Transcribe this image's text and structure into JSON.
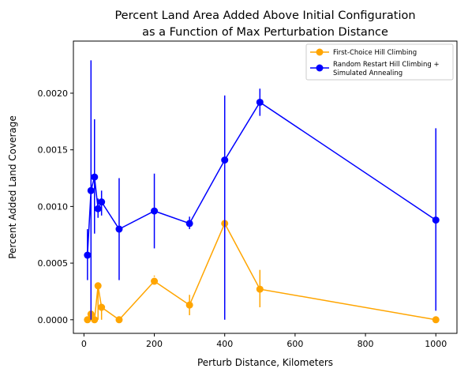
{
  "chart_data": {
    "type": "line",
    "title": [
      "Percent Land Area Added Above Initial Configuration",
      "as a Function of Max Perturbation Distance"
    ],
    "xlabel": "Perturb Distance, Kilometers",
    "ylabel": "Percent Added Land Coverage",
    "xlim": [
      -30,
      1060
    ],
    "ylim": [
      -0.00012,
      0.00246
    ],
    "x_ticks": [
      0,
      200,
      400,
      600,
      800,
      1000
    ],
    "x_tick_labels": [
      "0",
      "200",
      "400",
      "600",
      "800",
      "1000"
    ],
    "y_ticks": [
      0.0,
      0.0005,
      0.001,
      0.0015,
      0.002
    ],
    "y_tick_labels": [
      "0.0000",
      "0.0005",
      "0.0010",
      "0.0015",
      "0.0020"
    ],
    "grid": false,
    "legend_position": "top-right",
    "series": [
      {
        "name": "First-Choice Hill Climbing",
        "color": "#ffa500",
        "x": [
          10,
          20,
          30,
          40,
          50,
          100,
          200,
          300,
          400,
          500,
          1000
        ],
        "y": [
          0.0,
          5e-05,
          0.0,
          0.0003,
          0.00011,
          0.0,
          0.00034,
          0.00013,
          0.00085,
          0.00027,
          0.0
        ],
        "err_low": [
          0.0,
          2e-05,
          0.0,
          0.0,
          0.0,
          0.0,
          0.00038,
          4e-05,
          0.00014,
          0.00011,
          0.0
        ],
        "err_high": [
          0.0,
          8e-05,
          0.0,
          0.00033,
          0.00012,
          0.0,
          0.00039,
          0.00022,
          0.00088,
          0.00044,
          0.0
        ]
      },
      {
        "name": "Random Restart Hill Climbing + Simulated Annealing",
        "legend_lines": [
          "Random Restart Hill Climbing +",
          "Simulated Annealing"
        ],
        "color": "#0000ff",
        "x": [
          10,
          20,
          30,
          40,
          50,
          100,
          200,
          300,
          400,
          500,
          1000
        ],
        "y": [
          0.00057,
          0.00114,
          0.00126,
          0.00098,
          0.00104,
          0.0008,
          0.00096,
          0.00085,
          0.00141,
          0.00192,
          0.00088
        ],
        "err_low": [
          0.00035,
          0.0,
          0.00076,
          0.0009,
          0.00092,
          0.00035,
          0.00063,
          0.0008,
          0.0,
          0.0018,
          8e-05
        ],
        "err_high": [
          0.0008,
          0.00229,
          0.00177,
          0.00107,
          0.00114,
          0.00125,
          0.00129,
          0.00091,
          0.00198,
          0.00204,
          0.00169
        ]
      }
    ]
  }
}
